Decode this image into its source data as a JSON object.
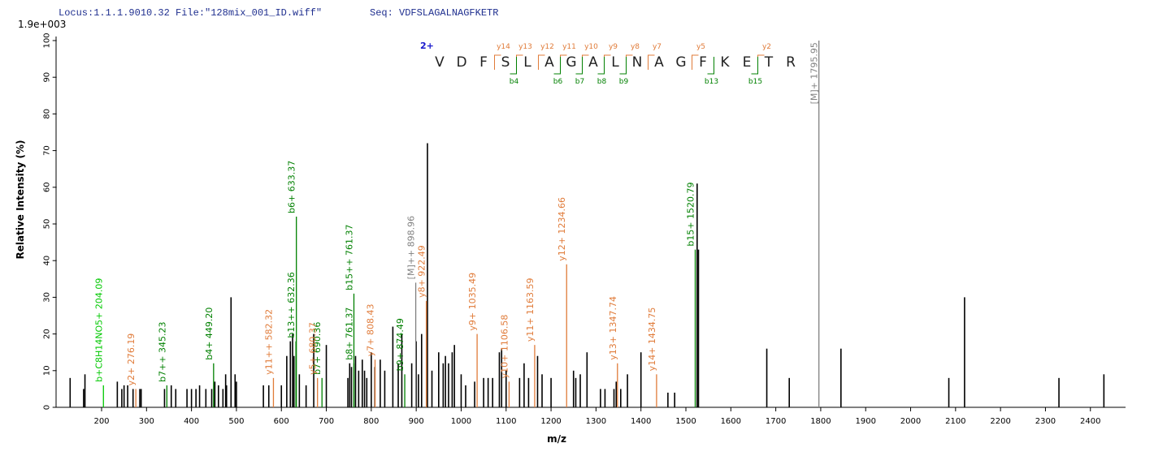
{
  "chart_data": {
    "type": "spectrum",
    "locus": "Locus:1.1.1.9010.32 File:\"128mix_001_ID.wiff\"",
    "seq": "Seq: VDFSLAGALNAGFKETR",
    "scale_label": "1.9e+003",
    "y_label": "Relative   Intensity (%)",
    "x_label": "m/z",
    "xlim": [
      100,
      2480
    ],
    "ylim": [
      0,
      100
    ],
    "xticks": [
      200,
      300,
      400,
      500,
      600,
      700,
      800,
      900,
      1000,
      1100,
      1200,
      1300,
      1400,
      1500,
      1600,
      1700,
      1800,
      1900,
      2000,
      2100,
      2200,
      2300,
      2400
    ],
    "yticks": [
      0,
      10,
      20,
      30,
      40,
      50,
      60,
      70,
      80,
      90,
      100
    ],
    "series": [
      {
        "color": "#000000",
        "x": [
          130,
          160,
          163,
          235,
          245,
          250,
          258,
          270,
          285,
          288,
          340,
          355,
          365,
          390,
          400,
          410,
          418,
          432,
          445,
          452,
          460,
          470,
          476,
          478,
          488,
          497,
          500,
          560,
          572,
          600,
          612,
          620,
          625,
          628,
          640,
          655,
          672,
          700,
          748,
          752,
          756,
          765,
          772,
          780,
          785,
          790,
          800,
          808,
          820,
          830,
          848,
          860,
          868,
          890,
          900,
          905,
          912,
          925,
          935,
          950,
          960,
          965,
          972,
          980,
          985,
          1000,
          1010,
          1030,
          1050,
          1060,
          1070,
          1085,
          1090,
          1100,
          1130,
          1140,
          1150,
          1170,
          1180,
          1200,
          1250,
          1255,
          1265,
          1280,
          1310,
          1320,
          1340,
          1345,
          1355,
          1370,
          1400,
          1460,
          1475,
          1525,
          1528,
          1680,
          1730,
          1845,
          2085,
          2120,
          2330,
          2430
        ],
        "values": [
          8,
          5,
          9,
          7,
          5,
          6,
          6,
          5,
          5,
          5,
          5,
          6,
          5,
          5,
          5,
          5,
          6,
          5,
          5,
          7,
          6,
          5,
          9,
          6,
          30,
          9,
          7,
          6,
          6,
          6,
          14,
          18,
          20,
          14,
          9,
          6,
          20,
          17,
          8,
          12,
          11,
          14,
          10,
          13,
          10,
          8,
          15,
          11,
          13,
          10,
          22,
          12,
          20,
          12,
          18,
          9,
          20,
          72,
          10,
          15,
          12,
          14,
          12,
          15,
          17,
          9,
          6,
          7,
          8,
          8,
          8,
          15,
          16,
          10,
          8,
          12,
          8,
          14,
          9,
          8,
          10,
          8,
          9,
          15,
          5,
          5,
          5,
          7,
          5,
          9,
          15,
          4,
          4,
          61,
          43,
          16,
          8,
          16,
          8,
          30,
          8,
          9
        ]
      },
      {
        "color": "#00c800",
        "x": [
          204.09
        ],
        "values": [
          6
        ],
        "labels": [
          "b+C8H14NO5+ 204.09"
        ]
      },
      {
        "color": "#008000",
        "x": [
          345.23,
          449.2,
          632.36,
          633.37,
          690.36,
          761.37,
          761.37,
          874.49,
          1520.79
        ],
        "values": [
          6,
          12,
          18,
          52,
          8,
          12,
          31,
          9,
          43
        ],
        "labels": [
          "b7++ 345.23",
          "b4+ 449.20",
          "b13++ 632.36",
          "b6+ 633.37",
          "b7+ 690.36",
          "b8+ 761.37",
          "b15++ 761.37",
          "b9+ 874.49",
          "b15+ 1520.79"
        ]
      },
      {
        "color": "#e07b39",
        "x": [
          276.19,
          582.32,
          680.37,
          808.43,
          922.49,
          1035.49,
          1106.58,
          1163.59,
          1234.66,
          1347.74,
          1434.75
        ],
        "values": [
          5,
          8,
          8,
          13,
          29,
          20,
          7,
          17,
          39,
          12,
          9
        ],
        "labels": [
          "y2+ 276.19",
          "y11++ 582.32",
          "y5+ 680.37",
          "y7+ 808.43",
          "y8+ 922.49",
          "y9+ 1035.49",
          "y10+ 1106.58",
          "y11+ 1163.59",
          "y12+ 1234.66",
          "y13+ 1347.74",
          "y14+ 1434.75"
        ]
      },
      {
        "color": "#808080",
        "x": [
          898.96,
          1795.95
        ],
        "values": [
          34,
          100
        ],
        "labels": [
          "[M]++ 898.96",
          "[M]+ 1795.95"
        ]
      }
    ],
    "ladder": {
      "charge": "2+",
      "residues": [
        "V",
        "D",
        "F",
        "S",
        "L",
        "A",
        "G",
        "A",
        "L",
        "N",
        "A",
        "G",
        "F",
        "K",
        "E",
        "T",
        "R"
      ],
      "y_ions": [
        "y14",
        "y13",
        "y12",
        "y11",
        "y10",
        "y9",
        "y8",
        "y7",
        "y5",
        "y2"
      ],
      "b_ions": [
        "b4",
        "b6",
        "b7",
        "b8",
        "b9",
        "b13",
        "b15"
      ],
      "y_color": "#e07b39",
      "b_color": "#008000"
    }
  }
}
